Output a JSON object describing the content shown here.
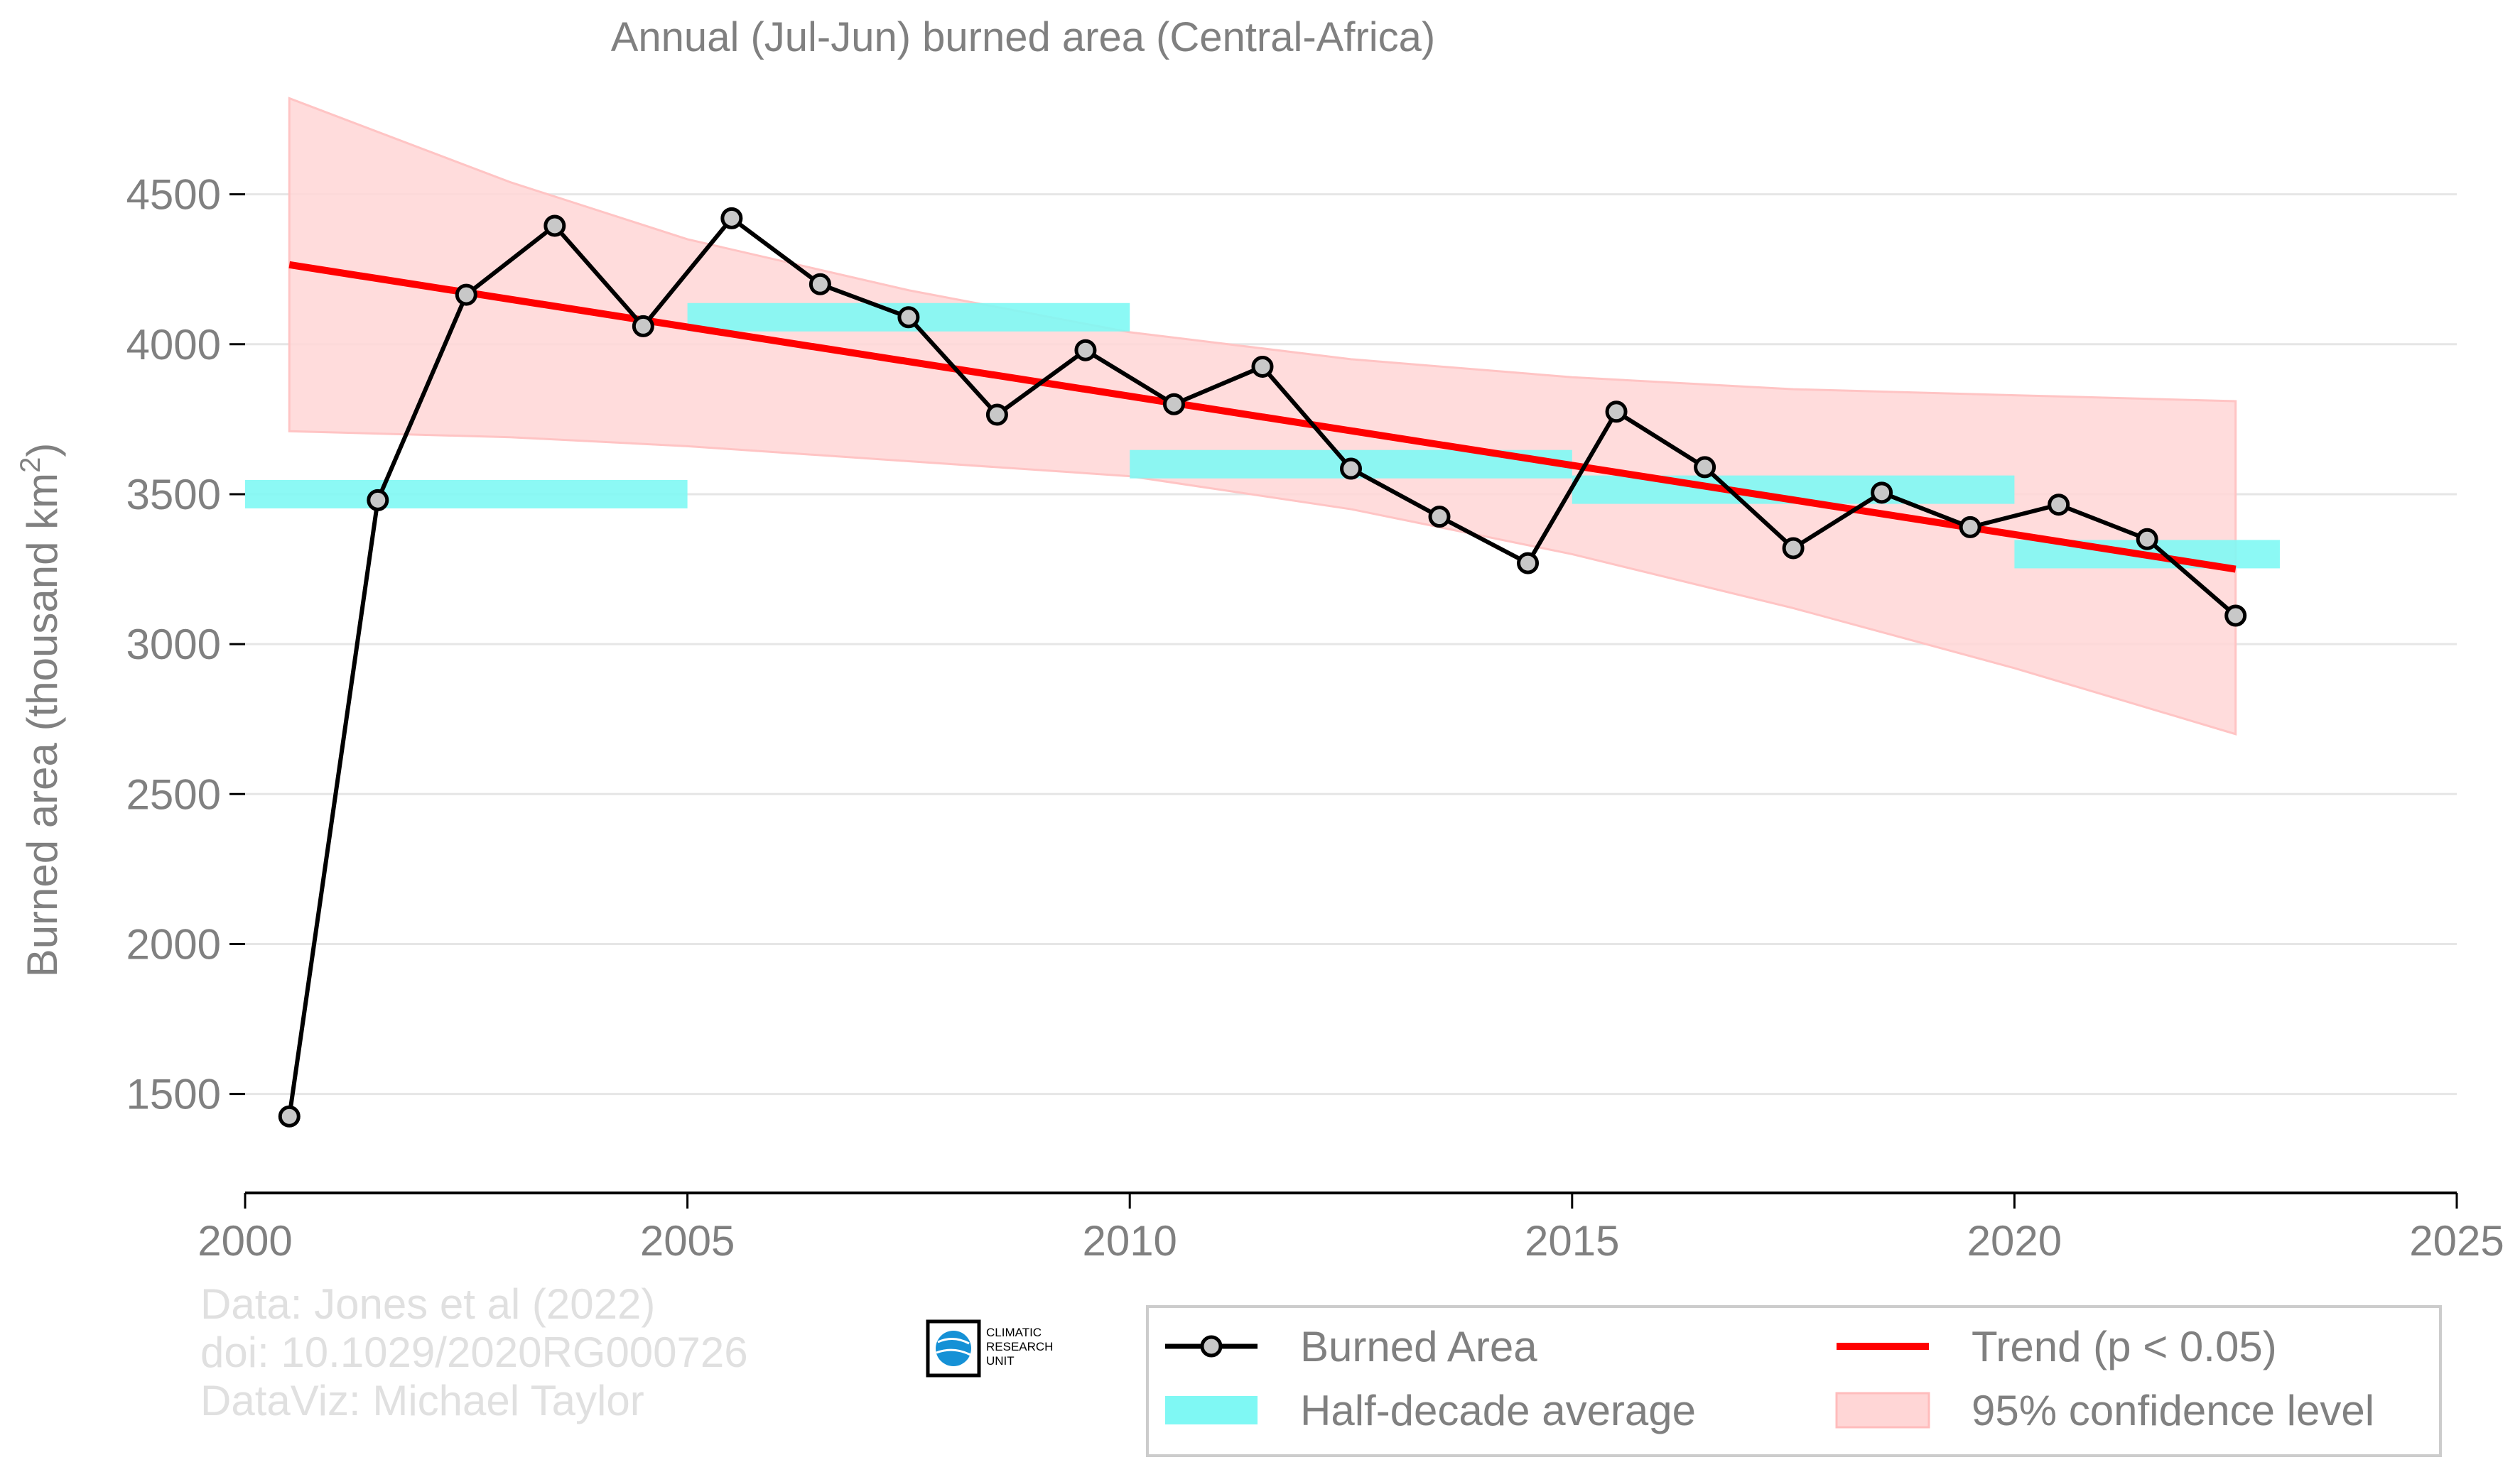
{
  "chart_data": {
    "type": "line",
    "title": "Annual (Jul-Jun) burned area (Central-Africa)",
    "xlabel": "",
    "ylabel_main": "Burned area (thousand km",
    "ylabel_sup": "2",
    "ylabel_tail": ")",
    "xlim": [
      2000,
      2025
    ],
    "ylim": [
      1170,
      4840
    ],
    "x_ticks": [
      2000,
      2005,
      2010,
      2015,
      2020,
      2025
    ],
    "y_ticks": [
      1500,
      2000,
      2500,
      3000,
      3500,
      4000,
      4500
    ],
    "grid": "horizontal",
    "legend_position": "bottom-right",
    "colors": {
      "series": "#000000",
      "marker_fill": "#c8c8c8",
      "trend": "#ff0000",
      "half_decade": "#7ff8f4",
      "confidence": "#ffd6d6",
      "text": "#808080",
      "credits": "#e0e0e0",
      "grid": "#e6e6e6"
    },
    "series": [
      {
        "name": "Burned Area",
        "x": [
          2000.5,
          2001.5,
          2002.5,
          2003.5,
          2004.5,
          2005.5,
          2006.5,
          2007.5,
          2008.5,
          2009.5,
          2010.5,
          2011.5,
          2012.5,
          2013.5,
          2014.5,
          2015.5,
          2016.5,
          2017.5,
          2018.5,
          2019.5,
          2020.5,
          2021.5,
          2022.5
        ],
        "values": [
          1425,
          3480,
          4165,
          4395,
          4060,
          4420,
          4200,
          4090,
          3765,
          3980,
          3800,
          3925,
          3585,
          3425,
          3270,
          3775,
          3590,
          3320,
          3505,
          3390,
          3465,
          3350,
          3095
        ]
      }
    ],
    "trend": {
      "name": "Trend (p < 0.05)",
      "x": [
        2000.5,
        2022.5
      ],
      "values": [
        4265,
        3250
      ]
    },
    "half_decade_average": {
      "name": "Half-decade average",
      "segments": [
        {
          "x": [
            2000,
            2005
          ],
          "value": 3500
        },
        {
          "x": [
            2005,
            2010
          ],
          "value": 4090
        },
        {
          "x": [
            2010,
            2015
          ],
          "value": 3600
        },
        {
          "x": [
            2015,
            2020
          ],
          "value": 3515
        },
        {
          "x": [
            2020,
            2023
          ],
          "value": 3300
        }
      ]
    },
    "confidence_band": {
      "name": "95% confidence level",
      "x": [
        2000.5,
        2003,
        2005,
        2007.5,
        2010,
        2012.5,
        2015,
        2017.5,
        2020,
        2022.5
      ],
      "upper": [
        4820,
        4540,
        4350,
        4180,
        4040,
        3950,
        3890,
        3850,
        3830,
        3810
      ],
      "lower": [
        3710,
        3690,
        3660,
        3610,
        3560,
        3450,
        3300,
        3120,
        2920,
        2700
      ]
    },
    "legend": {
      "burned_area": "Burned Area",
      "half_decade": "Half-decade average",
      "trend": "Trend (p < 0.05)",
      "confidence": "95% confidence level"
    },
    "credits": {
      "line1": "Data: Jones et al (2022)",
      "line2": "doi: 10.1029/2020RG000726",
      "line3": "DataViz: Michael Taylor"
    },
    "logo": {
      "line1": "CLIMATIC",
      "line2": "RESEARCH",
      "line3": "UNIT"
    }
  }
}
